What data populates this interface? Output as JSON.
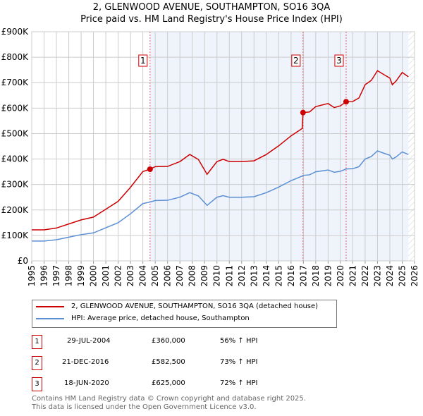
{
  "title": "2, GLENWOOD AVENUE, SOUTHAMPTON, SO16 3QA",
  "subtitle": "Price paid vs. HM Land Registry's House Price Index (HPI)",
  "chart_data": {
    "type": "line",
    "xlim": [
      1995,
      2026
    ],
    "ylim": [
      0,
      900000
    ],
    "y_ticks": [
      "£0",
      "£100K",
      "£200K",
      "£300K",
      "£400K",
      "£500K",
      "£600K",
      "£700K",
      "£800K",
      "£900K"
    ],
    "x_ticks": [
      "1995",
      "1996",
      "1997",
      "1998",
      "1999",
      "2000",
      "2001",
      "2002",
      "2003",
      "2004",
      "2005",
      "2006",
      "2007",
      "2008",
      "2009",
      "2010",
      "2011",
      "2012",
      "2013",
      "2014",
      "2015",
      "2016",
      "2017",
      "2018",
      "2019",
      "2020",
      "2021",
      "2022",
      "2023",
      "2024",
      "2025",
      "2026"
    ],
    "grid": true,
    "colors": {
      "property": "#cc0000",
      "hpi": "#5b8fd4",
      "shade": "#eef3fc"
    },
    "x": [
      1995,
      1996,
      1997,
      1998,
      1999,
      2000,
      2001,
      2002,
      2003,
      2004,
      2004.58,
      2005,
      2006,
      2007,
      2007.8,
      2008.5,
      2009.2,
      2010,
      2010.5,
      2011,
      2012,
      2013,
      2014,
      2015,
      2016,
      2016.9,
      2016.97,
      2017.5,
      2018,
      2019,
      2019.5,
      2020,
      2020.46,
      2021,
      2021.5,
      2022,
      2022.5,
      2023,
      2023.5,
      2024,
      2024.2,
      2024.5,
      2025,
      2025.5
    ],
    "series": [
      {
        "name": "2, GLENWOOD AVENUE, SOUTHAMPTON, SO16 3QA (detached house)",
        "values": [
          122000,
          122000,
          129000,
          145000,
          161000,
          172000,
          203000,
          234000,
          289000,
          351000,
          360000,
          370000,
          371000,
          390000,
          418000,
          398000,
          340000,
          390000,
          399000,
          390000,
          390000,
          393000,
          418000,
          452000,
          491000,
          520000,
          582500,
          585000,
          606000,
          618000,
          602000,
          609000,
          625000,
          626000,
          640000,
          692000,
          709000,
          747000,
          732000,
          718000,
          692000,
          706000,
          740000,
          723000
        ]
      },
      {
        "name": "HPI: Average price, detached house, Southampton",
        "values": [
          78000,
          78000,
          83000,
          93000,
          103000,
          110000,
          130000,
          150000,
          185000,
          225000,
          231000,
          237000,
          238000,
          250000,
          268000,
          255000,
          218000,
          250000,
          256000,
          250000,
          250000,
          252000,
          268000,
          290000,
          315000,
          333000,
          336000,
          338000,
          350000,
          357000,
          348000,
          352000,
          361000,
          362000,
          370000,
          400000,
          410000,
          432000,
          423000,
          415000,
          400000,
          408000,
          428000,
          418000
        ]
      }
    ],
    "sales": [
      {
        "label": "1",
        "x": 2004.58,
        "value": 360000
      },
      {
        "label": "2",
        "x": 2016.97,
        "value": 582500
      },
      {
        "label": "3",
        "x": 2020.46,
        "value": 625000
      }
    ],
    "shaded_from": 2004.58,
    "hatched_from": 2025.5
  },
  "legend": {
    "property": "2, GLENWOOD AVENUE, SOUTHAMPTON, SO16 3QA (detached house)",
    "hpi": "HPI: Average price, detached house, Southampton"
  },
  "transactions": [
    {
      "num": "1",
      "date": "29-JUL-2004",
      "price": "£360,000",
      "hpi": "56% ↑ HPI"
    },
    {
      "num": "2",
      "date": "21-DEC-2016",
      "price": "£582,500",
      "hpi": "73% ↑ HPI"
    },
    {
      "num": "3",
      "date": "18-JUN-2020",
      "price": "£625,000",
      "hpi": "72% ↑ HPI"
    }
  ],
  "footer": {
    "line1": "Contains HM Land Registry data © Crown copyright and database right 2025.",
    "line2": "This data is licensed under the Open Government Licence v3.0."
  }
}
